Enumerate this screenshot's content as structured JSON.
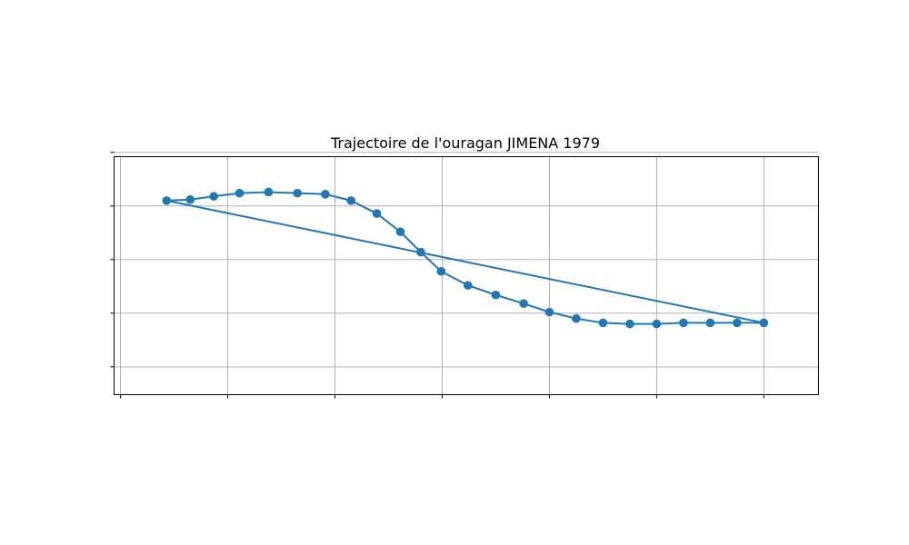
{
  "chart_data": {
    "type": "line",
    "title": "Trajectoire de l'ouragan JIMENA 1979",
    "xlabel": "",
    "ylabel": "",
    "x_ticks": [
      -120,
      -110,
      -100,
      -90,
      -80,
      -70,
      -60
    ],
    "y_ticks": [
      0,
      5,
      10,
      15,
      20
    ],
    "xlim": [
      -120.6,
      -54.9
    ],
    "ylim": [
      -2.6,
      19.6
    ],
    "grid": true,
    "color": "#1f77b4",
    "series": [
      {
        "name": "",
        "x": [
          -115.7,
          -113.5,
          -111.3,
          -108.9,
          -106.2,
          -103.5,
          -100.9,
          -98.5,
          -96.1,
          -93.9,
          -92.0,
          -90.1,
          -87.6,
          -85.0,
          -82.4,
          -80.0,
          -77.5,
          -75.0,
          -72.5,
          -70.0,
          -67.5,
          -65.0,
          -62.5,
          -60.0,
          -115.7
        ],
        "y": [
          15.5,
          15.6,
          15.9,
          16.2,
          16.3,
          16.2,
          16.1,
          15.5,
          14.3,
          12.6,
          10.7,
          8.9,
          7.6,
          6.7,
          5.9,
          5.1,
          4.5,
          4.1,
          4.0,
          4.0,
          4.1,
          4.1,
          4.1,
          4.1,
          15.5
        ],
        "markers": [
          -115.7,
          -113.5,
          -111.3,
          -108.9,
          -106.2,
          -103.5,
          -100.9,
          -98.5,
          -96.1,
          -93.9,
          -92.0,
          -90.1,
          -87.6,
          -85.0,
          -82.4,
          -80.0,
          -77.5,
          -75.0,
          -72.5,
          -70.0,
          -67.5,
          -65.0,
          -62.5,
          -60.0
        ]
      }
    ]
  }
}
